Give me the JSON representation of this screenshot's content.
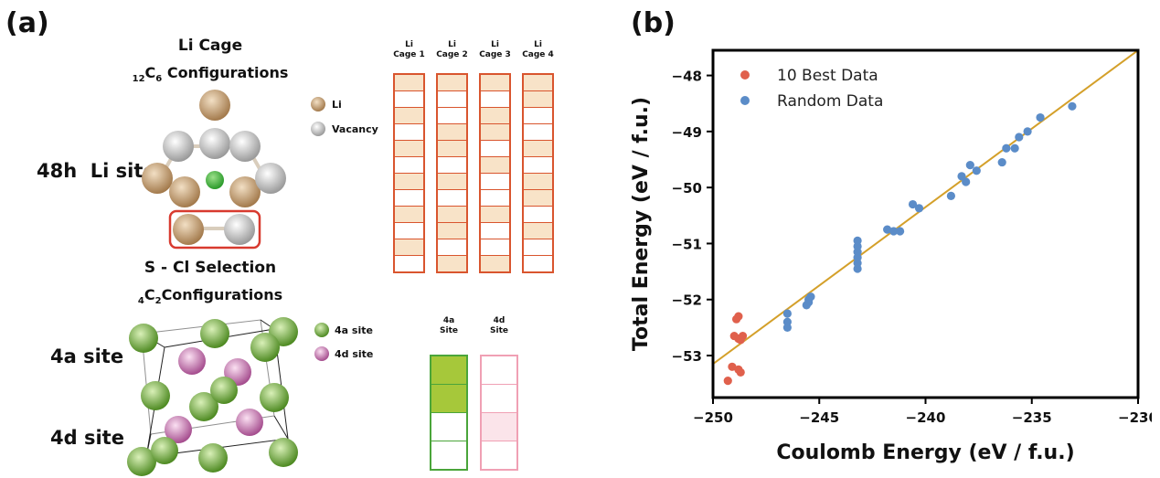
{
  "panel_a": {
    "label": "(a)",
    "li_cage_title": "Li Cage",
    "li_cage_subtitle": {
      "sub_before": "12",
      "letter": "C",
      "sub_after": "6",
      "text": " Configurations"
    },
    "site_48h": "48h  Li site",
    "legend_li": [
      {
        "name": "Li",
        "color": "#c9a67b"
      },
      {
        "name": "Vacancy",
        "color": "#c8c8c8"
      }
    ],
    "cage_headers": [
      {
        "line1": "Li",
        "line2": "Cage 1"
      },
      {
        "line1": "Li",
        "line2": "Cage 2"
      },
      {
        "line1": "Li",
        "line2": "Cage 3"
      },
      {
        "line1": "Li",
        "line2": "Cage 4"
      }
    ],
    "cage_fill": [
      [
        1,
        0,
        1,
        0,
        1,
        0,
        1,
        0,
        1,
        0,
        1,
        0
      ],
      [
        1,
        0,
        0,
        1,
        1,
        0,
        1,
        0,
        1,
        1,
        0,
        1
      ],
      [
        1,
        0,
        1,
        1,
        0,
        1,
        0,
        0,
        1,
        0,
        0,
        1
      ],
      [
        1,
        1,
        0,
        0,
        1,
        0,
        1,
        1,
        0,
        1,
        0,
        0
      ]
    ],
    "scl_title": "S - Cl Selection",
    "scl_subtitle": {
      "sub_before": "4",
      "letter": "C",
      "sub_after": "2",
      "text": "Configurations"
    },
    "site_4a": "4a site",
    "site_4d": "4d site",
    "legend_site": [
      {
        "name": "4a site",
        "color": "#7fb547"
      },
      {
        "name": "4d site",
        "color": "#d48cbf"
      }
    ],
    "site_headers": [
      {
        "line1": "4a",
        "line2": "Site"
      },
      {
        "line1": "4d",
        "line2": "Site"
      }
    ],
    "site_fill": [
      [
        1,
        1,
        0,
        0
      ],
      [
        0,
        0,
        1,
        0
      ]
    ],
    "colors": {
      "cage_border": "#d9552e",
      "cage_fill": "#f8e3c8",
      "highlight_box": "#d83a2f",
      "site4a_border": "#4aa53a",
      "site4a_fill": "#a6c83a",
      "site4d_border": "#f0a0b4",
      "site4d_fill": "#fbe4ea"
    }
  },
  "panel_b": {
    "label": "(b)"
  },
  "chart_data": {
    "type": "scatter",
    "xlabel": "Coulomb Energy (eV / f.u.)",
    "ylabel": "Total Energy (eV / f.u.)",
    "xlim": [
      -250,
      -230
    ],
    "ylim": [
      -53.75,
      -47.55
    ],
    "xticks": [
      -250,
      -245,
      -240,
      -235,
      -230
    ],
    "yticks": [
      -53,
      -52,
      -51,
      -50,
      -49,
      -48
    ],
    "xtick_labels": [
      "−250",
      "−245",
      "−240",
      "−235",
      "−230"
    ],
    "ytick_labels": [
      "−53",
      "−52",
      "−51",
      "−50",
      "−49",
      "−48"
    ],
    "grid": false,
    "legend_position": "top-left",
    "fit_line": {
      "color": "#d4a02a",
      "x": [
        -250,
        -230
      ],
      "y": [
        -53.15,
        -47.55
      ]
    },
    "series": [
      {
        "name": "10 Best Data",
        "color": "#e0604c",
        "points": [
          [
            -249.3,
            -53.45
          ],
          [
            -249.1,
            -53.2
          ],
          [
            -248.8,
            -53.25
          ],
          [
            -248.7,
            -53.3
          ],
          [
            -249.0,
            -52.65
          ],
          [
            -248.8,
            -52.7
          ],
          [
            -248.6,
            -52.65
          ],
          [
            -248.7,
            -52.72
          ],
          [
            -248.9,
            -52.35
          ],
          [
            -248.8,
            -52.3
          ]
        ]
      },
      {
        "name": "Random Data",
        "color": "#5b8cc8",
        "points": [
          [
            -246.5,
            -52.5
          ],
          [
            -246.5,
            -52.4
          ],
          [
            -246.5,
            -52.25
          ],
          [
            -245.6,
            -52.1
          ],
          [
            -245.5,
            -52.0
          ],
          [
            -245.4,
            -51.95
          ],
          [
            -245.5,
            -52.05
          ],
          [
            -243.2,
            -51.45
          ],
          [
            -243.2,
            -51.35
          ],
          [
            -243.2,
            -51.25
          ],
          [
            -243.2,
            -51.15
          ],
          [
            -243.2,
            -51.05
          ],
          [
            -243.2,
            -50.95
          ],
          [
            -241.8,
            -50.75
          ],
          [
            -241.5,
            -50.78
          ],
          [
            -241.2,
            -50.78
          ],
          [
            -240.6,
            -50.3
          ],
          [
            -240.3,
            -50.37
          ],
          [
            -238.8,
            -50.15
          ],
          [
            -238.3,
            -49.8
          ],
          [
            -238.1,
            -49.9
          ],
          [
            -237.9,
            -49.6
          ],
          [
            -237.6,
            -49.7
          ],
          [
            -236.4,
            -49.55
          ],
          [
            -236.2,
            -49.3
          ],
          [
            -235.8,
            -49.3
          ],
          [
            -235.6,
            -49.1
          ],
          [
            -235.2,
            -49.0
          ],
          [
            -234.6,
            -48.75
          ],
          [
            -233.1,
            -48.55
          ]
        ]
      }
    ]
  }
}
